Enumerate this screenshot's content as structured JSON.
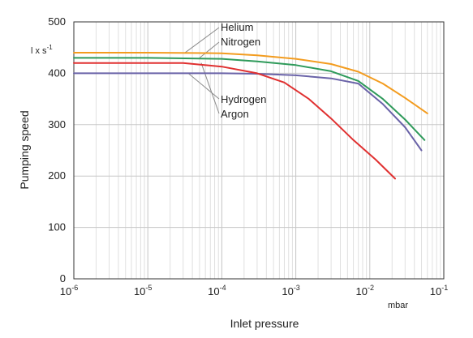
{
  "chart_data": {
    "type": "line",
    "xscale": "log",
    "xlim": [
      1e-06,
      0.1
    ],
    "ylim": [
      0,
      500
    ],
    "grid": true,
    "xlabel": "Inlet pressure",
    "ylabel": "Pumping speed",
    "x_unit": "mbar",
    "y_unit_text": "l x s",
    "y_unit_sup": "-1",
    "y_ticks": [
      {
        "value": 0,
        "label": "0"
      },
      {
        "value": 100,
        "label": "100"
      },
      {
        "value": 200,
        "label": "200"
      },
      {
        "value": 300,
        "label": "300"
      },
      {
        "value": 400,
        "label": "400"
      },
      {
        "value": 500,
        "label": "500"
      }
    ],
    "x_ticks": [
      {
        "value": 1e-06,
        "base": "10",
        "exp": "-6"
      },
      {
        "value": 1e-05,
        "base": "10",
        "exp": "-5"
      },
      {
        "value": 0.0001,
        "base": "10",
        "exp": "-4"
      },
      {
        "value": 0.001,
        "base": "10",
        "exp": "-3"
      },
      {
        "value": 0.01,
        "base": "10",
        "exp": "-2"
      },
      {
        "value": 0.1,
        "base": "10",
        "exp": "-1"
      }
    ],
    "series": [
      {
        "name": "Helium",
        "color": "#f39c1f",
        "points": [
          [
            1e-06,
            440
          ],
          [
            1e-05,
            440
          ],
          [
            0.0001,
            439
          ],
          [
            0.0003,
            435
          ],
          [
            0.001,
            428
          ],
          [
            0.003,
            418
          ],
          [
            0.007,
            403
          ],
          [
            0.015,
            380
          ],
          [
            0.03,
            352
          ],
          [
            0.06,
            322
          ]
        ]
      },
      {
        "name": "Nitrogen",
        "color": "#2e9a5a",
        "points": [
          [
            1e-06,
            430
          ],
          [
            1e-05,
            430
          ],
          [
            0.0001,
            428
          ],
          [
            0.0003,
            423
          ],
          [
            0.001,
            416
          ],
          [
            0.003,
            404
          ],
          [
            0.007,
            385
          ],
          [
            0.015,
            350
          ],
          [
            0.03,
            310
          ],
          [
            0.055,
            270
          ]
        ]
      },
      {
        "name": "Hydrogen",
        "color": "#6a63a8",
        "points": [
          [
            1e-06,
            400
          ],
          [
            1e-05,
            400
          ],
          [
            0.0001,
            400
          ],
          [
            0.0003,
            399
          ],
          [
            0.001,
            396
          ],
          [
            0.003,
            390
          ],
          [
            0.007,
            380
          ],
          [
            0.015,
            340
          ],
          [
            0.03,
            295
          ],
          [
            0.05,
            250
          ]
        ]
      },
      {
        "name": "Argon",
        "color": "#e03030",
        "points": [
          [
            1e-06,
            420
          ],
          [
            1e-05,
            420
          ],
          [
            3e-05,
            420
          ],
          [
            0.0001,
            413
          ],
          [
            0.0003,
            400
          ],
          [
            0.0007,
            382
          ],
          [
            0.0015,
            350
          ],
          [
            0.003,
            312
          ],
          [
            0.006,
            270
          ],
          [
            0.012,
            232
          ],
          [
            0.022,
            195
          ]
        ]
      }
    ],
    "legend_placement": "top-center"
  }
}
